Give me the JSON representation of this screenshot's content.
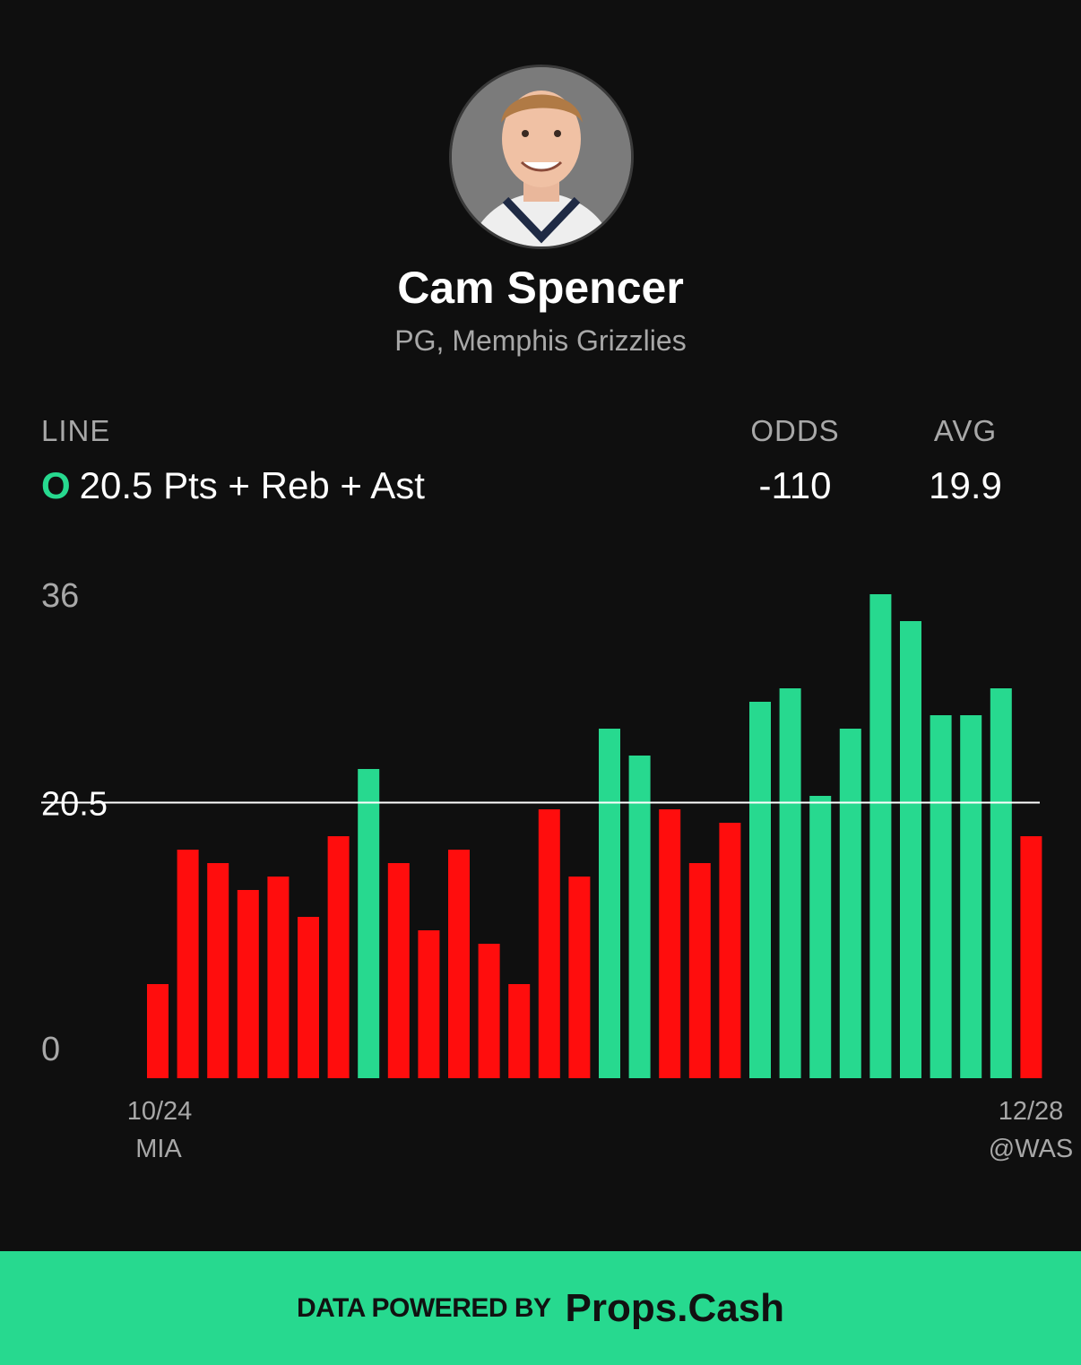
{
  "player": {
    "name": "Cam Spencer",
    "position_team": "PG, Memphis Grizzlies"
  },
  "stats": {
    "line_header": "LINE",
    "odds_header": "ODDS",
    "avg_header": "AVG",
    "over_badge": "O",
    "line_value": "20.5 Pts + Reb + Ast",
    "odds_value": "-110",
    "avg_value": "19.9"
  },
  "colors": {
    "over": "#27d98f",
    "under": "#ff0d0d",
    "line": "#ffffff",
    "background": "#0f0f0f"
  },
  "chart_data": {
    "type": "bar",
    "y_tick_labels": [
      "36",
      "20.5",
      "0"
    ],
    "y_ticks": [
      36,
      20.5,
      0
    ],
    "ylim": [
      0,
      36
    ],
    "line": 20.5,
    "values": [
      7,
      17,
      16,
      14,
      15,
      12,
      18,
      23,
      16,
      11,
      17,
      10,
      7,
      20,
      15,
      26,
      24,
      20,
      16,
      19,
      28,
      29,
      21,
      26,
      36,
      34,
      27,
      27,
      29,
      18
    ],
    "first_label": {
      "date": "10/24",
      "opponent": "MIA"
    },
    "last_label": {
      "date": "12/28",
      "opponent": "@WAS"
    }
  },
  "footer": {
    "prefix": "DATA POWERED BY",
    "brand": "Props.Cash"
  }
}
